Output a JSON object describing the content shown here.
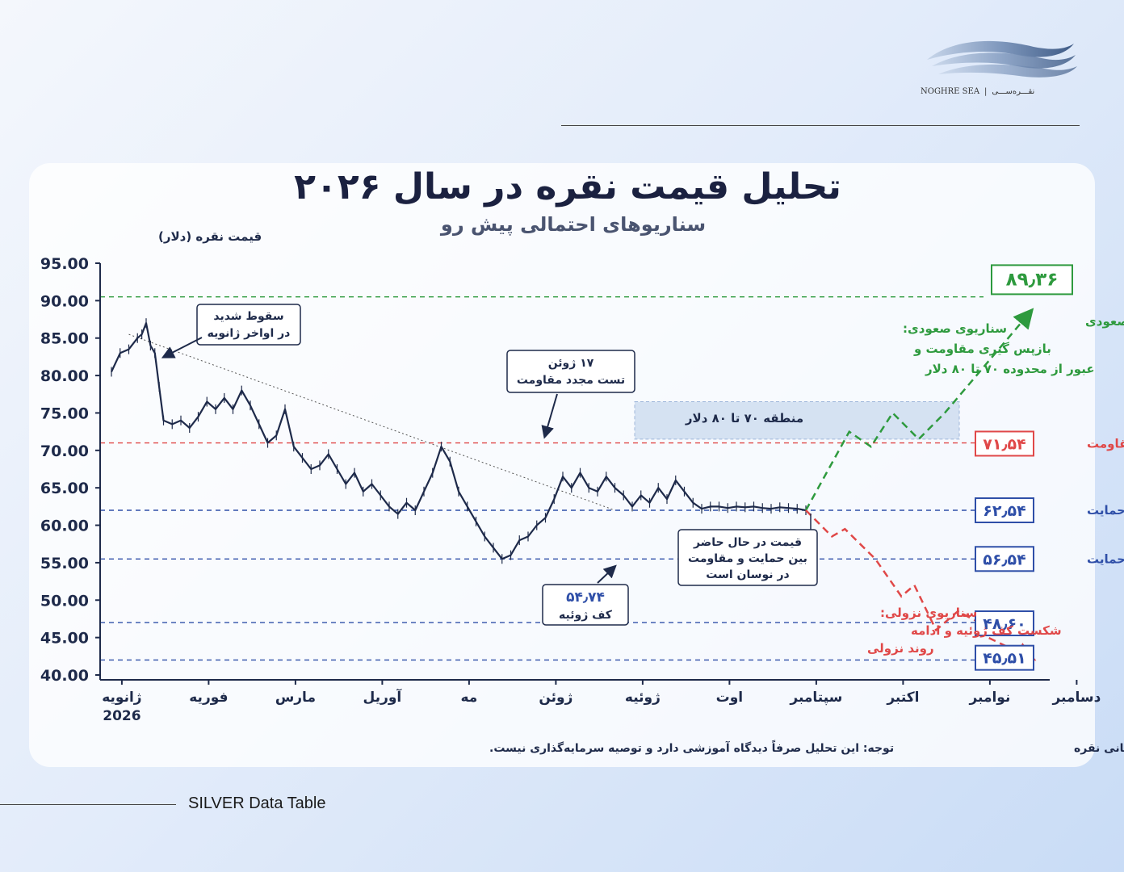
{
  "brand": {
    "latin": "NOGHRE SEA",
    "persian": "نقـــره‌ســـی"
  },
  "footer_caption": "SILVER Data Table",
  "chart_data": {
    "type": "line",
    "title": "تحلیل قیمت نقره در سال ۲۰۲۶",
    "subtitle": "سناریوهای احتمالی پیش رو",
    "ylabel": "قیمت نقره (دلار)",
    "ylim": [
      40,
      95
    ],
    "yticks": [
      "95.00",
      "90.00",
      "85.00",
      "80.00",
      "75.00",
      "70.00",
      "65.00",
      "60.00",
      "55.00",
      "50.00",
      "45.00",
      "40.00"
    ],
    "categories": [
      "ژانویه",
      "فوریه",
      "مارس",
      "آوریل",
      "مه",
      "ژوئن",
      "ژوئیه",
      "اوت",
      "سپتامبر",
      "اکتبر",
      "نوامبر",
      "دسامبر"
    ],
    "first_category_year": "2026",
    "price_series": {
      "x": [
        0.0,
        0.1,
        0.2,
        0.3,
        0.35,
        0.4,
        0.45,
        0.5,
        0.55,
        0.6,
        0.7,
        0.8,
        0.9,
        1.0,
        1.1,
        1.2,
        1.3,
        1.4,
        1.5,
        1.6,
        1.7,
        1.8,
        1.9,
        2.0,
        2.1,
        2.2,
        2.3,
        2.4,
        2.5,
        2.6,
        2.7,
        2.8,
        2.9,
        3.0,
        3.1,
        3.2,
        3.3,
        3.4,
        3.5,
        3.6,
        3.7,
        3.8,
        3.9,
        4.0,
        4.1,
        4.2,
        4.3,
        4.4,
        4.5,
        4.6,
        4.7,
        4.8,
        4.9,
        5.0,
        5.1,
        5.2,
        5.3,
        5.4,
        5.5,
        5.6,
        5.7,
        5.8,
        5.9,
        6.0,
        6.1,
        6.2,
        6.3,
        6.4,
        6.5,
        6.6,
        6.7,
        6.8,
        6.9,
        7.0,
        7.1,
        7.2,
        7.3,
        7.4,
        7.5,
        7.6,
        7.7,
        7.8,
        7.9,
        8.0
      ],
      "y": [
        80.5,
        83.0,
        83.5,
        85.0,
        85.5,
        87.0,
        84.0,
        83.0,
        78.5,
        74.0,
        73.5,
        74.0,
        73.0,
        74.5,
        76.5,
        75.5,
        77.0,
        75.5,
        78.0,
        76.0,
        73.5,
        71.0,
        72.0,
        75.5,
        70.5,
        69.0,
        67.5,
        68.0,
        69.5,
        67.5,
        65.5,
        67.0,
        64.5,
        65.5,
        64.0,
        62.5,
        61.5,
        63.0,
        62.0,
        64.5,
        67.0,
        70.5,
        68.5,
        64.5,
        62.5,
        60.5,
        58.5,
        57.0,
        55.5,
        56.0,
        58.0,
        58.5,
        60.0,
        61.0,
        63.5,
        66.5,
        65.0,
        67.0,
        65.0,
        64.5,
        66.5,
        65.0,
        64.0,
        62.5,
        64.0,
        63.0,
        65.0,
        63.5,
        66.0,
        64.5,
        63.0,
        62.2,
        62.5,
        62.5,
        62.3,
        62.5,
        62.4,
        62.5,
        62.3,
        62.2,
        62.4,
        62.3,
        62.2,
        62.0
      ]
    },
    "trendline": {
      "x": [
        0.2,
        5.8
      ],
      "y": [
        85.5,
        62.0
      ]
    },
    "bullish_scenario": {
      "x": [
        8.0,
        8.5,
        8.75,
        9.0,
        9.3,
        9.6,
        10.55
      ],
      "y": [
        62.0,
        72.5,
        70.5,
        75.0,
        71.5,
        75.0,
        88.0
      ]
    },
    "bearish_scenario": {
      "x": [
        8.0,
        8.3,
        8.45,
        8.8,
        9.1,
        9.25,
        9.5,
        9.75,
        10.0,
        10.1,
        10.55
      ],
      "y": [
        62.0,
        58.5,
        59.5,
        55.5,
        50.5,
        52.0,
        46.0,
        48.5,
        47.0,
        45.0,
        42.5
      ]
    },
    "level_lines": [
      {
        "y": 90.5,
        "color": "#2e9a3e"
      },
      {
        "y": 71.0,
        "color": "#e04848"
      },
      {
        "y": 62.0,
        "color": "#2f4fa8"
      },
      {
        "y": 55.5,
        "color": "#2f4fa8"
      },
      {
        "y": 47.0,
        "color": "#2f4fa8"
      },
      {
        "y": 42.0,
        "color": "#2f4fa8"
      }
    ],
    "level_labels": [
      {
        "value": "۸۹٫۳۶",
        "label": "هدف صعودی",
        "color": "#2e9a3e"
      },
      {
        "value": "۷۱٫۵۴",
        "label": "مقاومت",
        "color": "#e04848"
      },
      {
        "value": "۶۲٫۵۴",
        "label": "حمایت",
        "color": "#2f4fa8"
      },
      {
        "value": "۵۶٫۵۴",
        "label": "حمایت",
        "color": "#2f4fa8"
      },
      {
        "value": "۴۸٫۶۰",
        "label": "",
        "color": "#2f4fa8"
      },
      {
        "value": "۴۵٫۵۱",
        "label": "",
        "color": "#2f4fa8"
      }
    ],
    "zone": {
      "y_low": 71.5,
      "y_high": 76.5,
      "label": "منطقه ۷۰ تا ۸۰ دلار"
    },
    "callouts": {
      "jan_drop": [
        "سقوط شدید",
        "در اواخر ژانویه"
      ],
      "june_retest": [
        "۱۷ ژوئن",
        "تست مجدد مقاومت"
      ],
      "july_floor": [
        "۵۴٫۷۴",
        "کف ژوئیه"
      ],
      "current_price": [
        "قیمت در حال حاضر",
        "بین حمایت و مقاومت",
        "در نوسان است"
      ]
    },
    "scenario_text": {
      "bullish": [
        "سناریوی صعودی:",
        "بازپس گیری مقاومت و",
        "عبور از محدوده ۷۰ تا ۸۰ دلار"
      ],
      "bearish": [
        "سناریوی نزولی:",
        "شکست کف ژوئیه و ادامه",
        "روند نزولی"
      ]
    },
    "source_note": "منبع داده‌ها: قیمت لحظه‌ای بازار جهانی نقره",
    "disclaimer": "توجه: این تحلیل صرفاً دیدگاه آموزشی دارد و توصیه سرمایه‌گذاری نیست.",
    "colors": {
      "price": "#1e2a4a",
      "bullish": "#2e9a3e",
      "bearish": "#e04848",
      "support": "#2f4fa8",
      "zone": "#cfddf0",
      "title": "#1b2140",
      "subtitle": "#4a5470"
    },
    "grid": false
  }
}
